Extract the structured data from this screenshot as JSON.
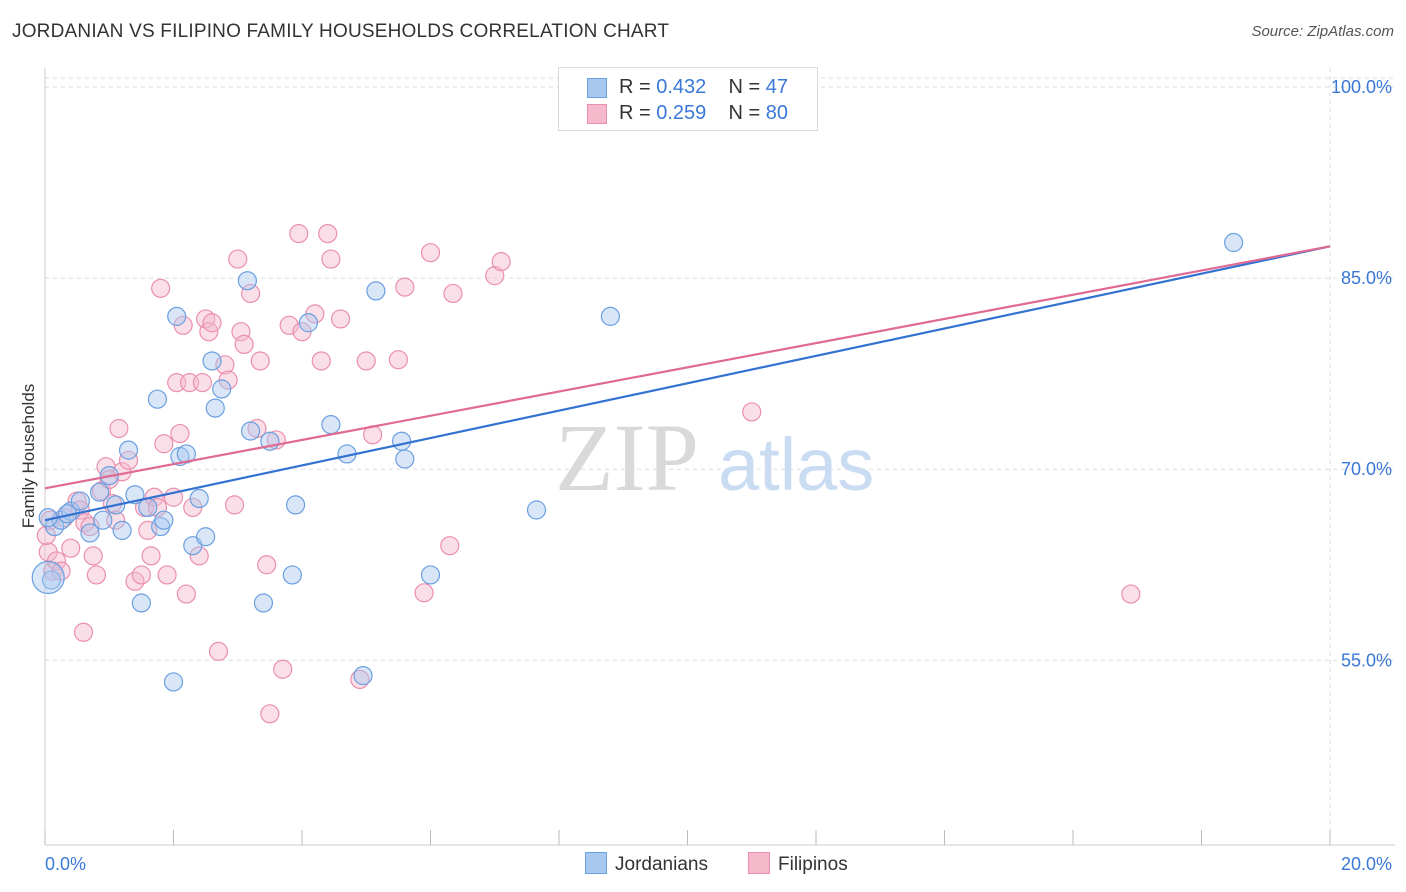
{
  "header": {
    "title": "JORDANIAN VS FILIPINO FAMILY HOUSEHOLDS CORRELATION CHART",
    "source": "Source: ZipAtlas.com"
  },
  "legend": {
    "jordanians": {
      "r_label": "R =",
      "r_value": "0.432",
      "n_label": "N =",
      "n_value": "47"
    },
    "filipinos": {
      "r_label": "R =",
      "r_value": "0.259",
      "n_label": "N =",
      "n_value": "80"
    }
  },
  "bottom_legend": {
    "jordanians": "Jordanians",
    "filipinos": "Filipinos"
  },
  "watermark": {
    "zip": "ZIP",
    "atlas": "atlas"
  },
  "colors": {
    "blue_fill": "#a9c8f0",
    "blue_stroke": "#6a9fe0",
    "blue_line": "#3472d0",
    "pink_fill": "#f5b9cb",
    "pink_stroke": "#ea8fae",
    "pink_line": "#e06a93",
    "axis_label": "#3a78d8",
    "grid": "#dddddd"
  },
  "chart_data": {
    "type": "scatter",
    "title": "JORDANIAN VS FILIPINO FAMILY HOUSEHOLDS CORRELATION CHART",
    "xlabel": "",
    "ylabel": "Family Households",
    "xlim": [
      0,
      20
    ],
    "ylim": [
      40.5,
      101.5
    ],
    "x_tick_labels": [
      {
        "value": 0,
        "label": "0.0%"
      },
      {
        "value": 20,
        "label": "20.0%"
      }
    ],
    "y_tick_labels": [
      {
        "value": 55,
        "label": "55.0%"
      },
      {
        "value": 70,
        "label": "70.0%"
      },
      {
        "value": 85,
        "label": "85.0%"
      },
      {
        "value": 100,
        "label": "100.0%"
      }
    ],
    "series": [
      {
        "name": "Jordanians",
        "r": 0.432,
        "n": 47,
        "trendline": {
          "x": [
            0,
            20
          ],
          "y": [
            66.0,
            87.5
          ]
        },
        "points": [
          {
            "x": 0.15,
            "y": 65.5
          },
          {
            "x": 0.25,
            "y": 66.0
          },
          {
            "x": 0.4,
            "y": 66.7
          },
          {
            "x": 0.55,
            "y": 67.5
          },
          {
            "x": 0.7,
            "y": 65.0
          },
          {
            "x": 0.35,
            "y": 66.5
          },
          {
            "x": 0.85,
            "y": 68.2
          },
          {
            "x": 0.9,
            "y": 66.0
          },
          {
            "x": 1.0,
            "y": 69.5
          },
          {
            "x": 1.1,
            "y": 67.2
          },
          {
            "x": 1.2,
            "y": 65.2
          },
          {
            "x": 1.3,
            "y": 71.5
          },
          {
            "x": 1.4,
            "y": 68.0
          },
          {
            "x": 1.5,
            "y": 59.5
          },
          {
            "x": 1.6,
            "y": 67.0
          },
          {
            "x": 1.75,
            "y": 75.5
          },
          {
            "x": 1.8,
            "y": 65.5
          },
          {
            "x": 1.85,
            "y": 66.0
          },
          {
            "x": 2.0,
            "y": 53.3
          },
          {
            "x": 2.05,
            "y": 82.0
          },
          {
            "x": 2.1,
            "y": 71.0
          },
          {
            "x": 2.2,
            "y": 71.2
          },
          {
            "x": 2.3,
            "y": 64.0
          },
          {
            "x": 2.4,
            "y": 67.7
          },
          {
            "x": 2.5,
            "y": 64.7
          },
          {
            "x": 2.6,
            "y": 78.5
          },
          {
            "x": 2.65,
            "y": 74.8
          },
          {
            "x": 2.75,
            "y": 76.3
          },
          {
            "x": 3.15,
            "y": 84.8
          },
          {
            "x": 3.2,
            "y": 73.0
          },
          {
            "x": 3.4,
            "y": 59.5
          },
          {
            "x": 3.5,
            "y": 72.2
          },
          {
            "x": 3.85,
            "y": 61.7
          },
          {
            "x": 3.9,
            "y": 67.2
          },
          {
            "x": 4.1,
            "y": 81.5
          },
          {
            "x": 4.45,
            "y": 73.5
          },
          {
            "x": 4.7,
            "y": 71.2
          },
          {
            "x": 4.95,
            "y": 53.8
          },
          {
            "x": 5.15,
            "y": 84.0
          },
          {
            "x": 5.55,
            "y": 72.2
          },
          {
            "x": 5.6,
            "y": 70.8
          },
          {
            "x": 6.0,
            "y": 61.7
          },
          {
            "x": 7.65,
            "y": 66.8
          },
          {
            "x": 8.8,
            "y": 82.0
          },
          {
            "x": 18.5,
            "y": 87.8
          },
          {
            "x": 0.1,
            "y": 61.3
          },
          {
            "x": 0.05,
            "y": 66.2
          }
        ]
      },
      {
        "name": "Filipinos",
        "r": 0.259,
        "n": 80,
        "trendline": {
          "x": [
            0,
            20
          ],
          "y": [
            68.5,
            87.5
          ]
        },
        "points": [
          {
            "x": 0.05,
            "y": 63.5
          },
          {
            "x": 0.12,
            "y": 62.0
          },
          {
            "x": 0.18,
            "y": 62.8
          },
          {
            "x": 0.25,
            "y": 62.0
          },
          {
            "x": 0.3,
            "y": 66.2
          },
          {
            "x": 0.4,
            "y": 63.8
          },
          {
            "x": 0.5,
            "y": 67.5
          },
          {
            "x": 0.55,
            "y": 66.8
          },
          {
            "x": 0.62,
            "y": 65.8
          },
          {
            "x": 0.7,
            "y": 65.5
          },
          {
            "x": 0.6,
            "y": 57.2
          },
          {
            "x": 0.75,
            "y": 63.2
          },
          {
            "x": 0.8,
            "y": 61.7
          },
          {
            "x": 0.88,
            "y": 68.3
          },
          {
            "x": 0.95,
            "y": 70.2
          },
          {
            "x": 1.0,
            "y": 69.2
          },
          {
            "x": 1.05,
            "y": 67.3
          },
          {
            "x": 1.1,
            "y": 66.0
          },
          {
            "x": 1.15,
            "y": 73.2
          },
          {
            "x": 1.2,
            "y": 69.8
          },
          {
            "x": 1.3,
            "y": 70.7
          },
          {
            "x": 1.4,
            "y": 61.2
          },
          {
            "x": 1.5,
            "y": 61.7
          },
          {
            "x": 1.55,
            "y": 67.0
          },
          {
            "x": 1.6,
            "y": 65.2
          },
          {
            "x": 1.65,
            "y": 63.2
          },
          {
            "x": 1.7,
            "y": 67.8
          },
          {
            "x": 1.75,
            "y": 67.0
          },
          {
            "x": 1.8,
            "y": 84.2
          },
          {
            "x": 1.85,
            "y": 72.0
          },
          {
            "x": 1.9,
            "y": 61.7
          },
          {
            "x": 2.0,
            "y": 67.8
          },
          {
            "x": 2.05,
            "y": 76.8
          },
          {
            "x": 2.1,
            "y": 72.8
          },
          {
            "x": 2.15,
            "y": 81.3
          },
          {
            "x": 2.2,
            "y": 60.2
          },
          {
            "x": 2.25,
            "y": 76.8
          },
          {
            "x": 2.3,
            "y": 67.0
          },
          {
            "x": 2.4,
            "y": 63.2
          },
          {
            "x": 2.45,
            "y": 76.8
          },
          {
            "x": 2.5,
            "y": 81.8
          },
          {
            "x": 2.55,
            "y": 80.8
          },
          {
            "x": 2.6,
            "y": 81.5
          },
          {
            "x": 2.7,
            "y": 55.7
          },
          {
            "x": 2.8,
            "y": 78.2
          },
          {
            "x": 2.85,
            "y": 77.0
          },
          {
            "x": 2.95,
            "y": 67.2
          },
          {
            "x": 3.0,
            "y": 86.5
          },
          {
            "x": 3.05,
            "y": 80.8
          },
          {
            "x": 3.1,
            "y": 79.8
          },
          {
            "x": 3.2,
            "y": 83.8
          },
          {
            "x": 3.3,
            "y": 73.2
          },
          {
            "x": 3.35,
            "y": 78.5
          },
          {
            "x": 3.45,
            "y": 62.5
          },
          {
            "x": 3.5,
            "y": 50.8
          },
          {
            "x": 3.6,
            "y": 72.3
          },
          {
            "x": 3.7,
            "y": 54.3
          },
          {
            "x": 3.8,
            "y": 81.3
          },
          {
            "x": 3.95,
            "y": 88.5
          },
          {
            "x": 4.0,
            "y": 80.8
          },
          {
            "x": 4.2,
            "y": 82.2
          },
          {
            "x": 4.3,
            "y": 78.5
          },
          {
            "x": 4.4,
            "y": 88.5
          },
          {
            "x": 4.45,
            "y": 86.5
          },
          {
            "x": 4.6,
            "y": 81.8
          },
          {
            "x": 4.9,
            "y": 53.5
          },
          {
            "x": 5.0,
            "y": 78.5
          },
          {
            "x": 5.1,
            "y": 72.7
          },
          {
            "x": 5.5,
            "y": 78.6
          },
          {
            "x": 5.6,
            "y": 84.3
          },
          {
            "x": 5.9,
            "y": 60.3
          },
          {
            "x": 6.0,
            "y": 87.0
          },
          {
            "x": 6.3,
            "y": 64.0
          },
          {
            "x": 6.35,
            "y": 83.8
          },
          {
            "x": 7.0,
            "y": 85.2
          },
          {
            "x": 7.1,
            "y": 86.3
          },
          {
            "x": 11.0,
            "y": 74.5
          },
          {
            "x": 16.9,
            "y": 60.2
          },
          {
            "x": 0.02,
            "y": 64.8
          },
          {
            "x": 0.08,
            "y": 66.0
          }
        ]
      }
    ]
  }
}
